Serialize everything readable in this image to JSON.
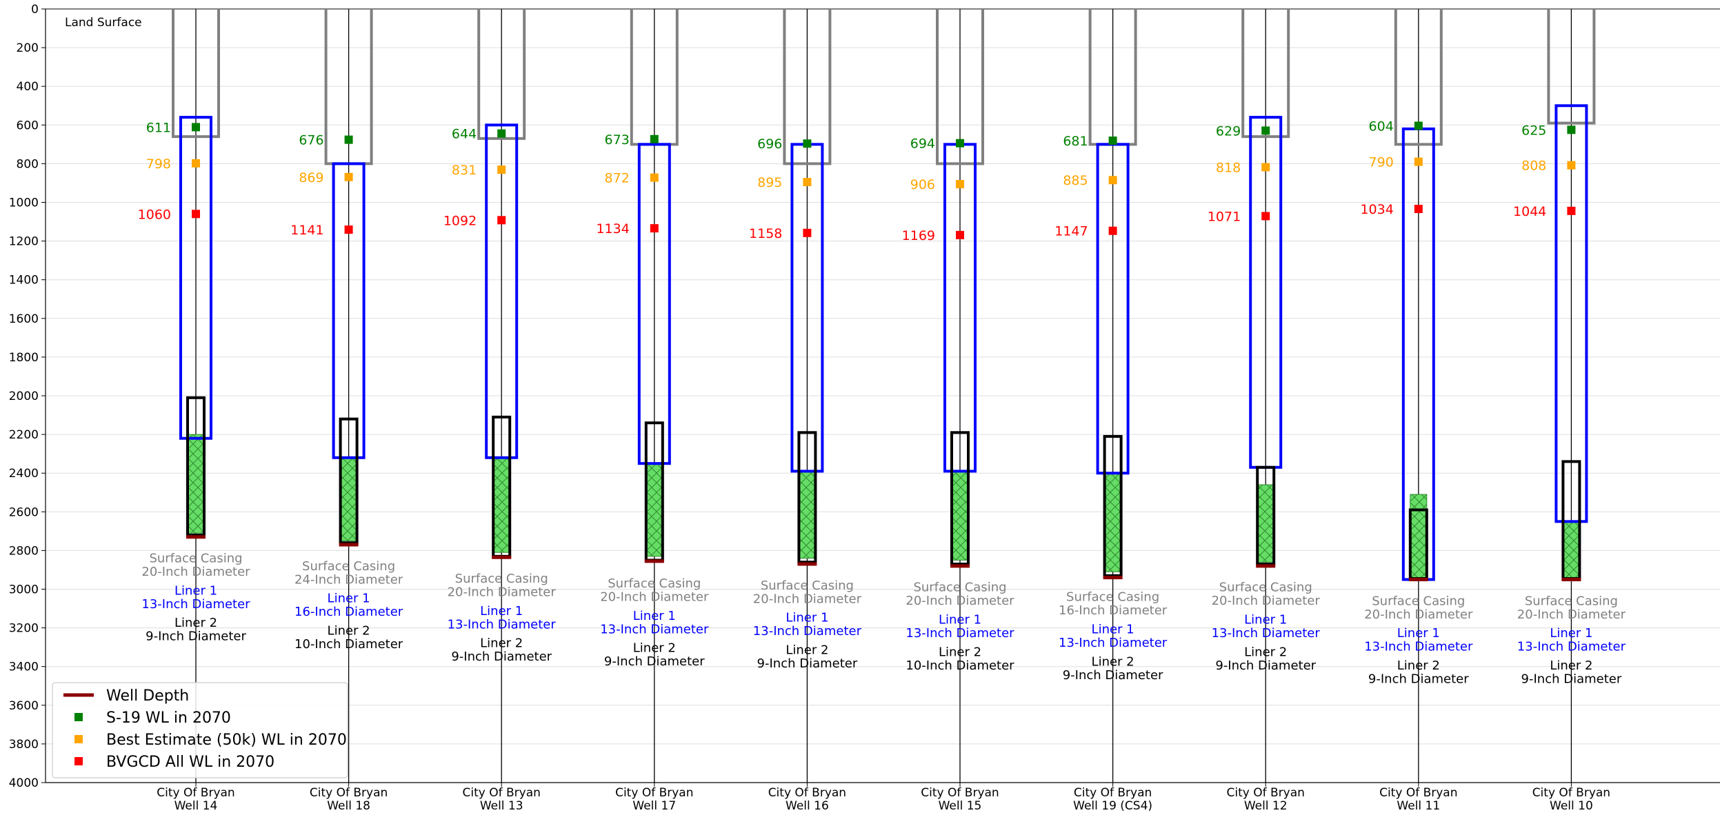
{
  "chart_data": {
    "type": "well_diagram",
    "corner_label": "Land Surface",
    "ylim": [
      4000,
      0
    ],
    "yticks": [
      0,
      200,
      400,
      600,
      800,
      1000,
      1200,
      1400,
      1600,
      1800,
      2000,
      2200,
      2400,
      2600,
      2800,
      3000,
      3200,
      3400,
      3600,
      3800,
      4000
    ],
    "grid": true,
    "legend_position": "lower-left",
    "legend": [
      {
        "key": "depth",
        "label": "Well Depth",
        "marker": "line"
      },
      {
        "key": "s19",
        "label": "S-19 WL in 2070",
        "marker": "square"
      },
      {
        "key": "best",
        "label": "Best Estimate (50k) WL in 2070",
        "marker": "square"
      },
      {
        "key": "bvgcd",
        "label": "BVGCD All WL in 2070",
        "marker": "square"
      }
    ],
    "colors": {
      "surface_casing": "#808080",
      "liner1": "#0000ff",
      "liner2": "#000000",
      "screen": "#66dd66",
      "depth": "#8b0000",
      "s19": "#008000",
      "best": "#ffa500",
      "bvgcd": "#ff0000",
      "grid": "#dddddd"
    },
    "wells": [
      {
        "name": [
          "City Of Bryan",
          "Well 14"
        ],
        "surface_bottom": 660,
        "liner1": [
          560,
          2220
        ],
        "liner2": [
          2010,
          2720
        ],
        "screen": [
          2200,
          2710
        ],
        "depth": 2730,
        "s19": 611,
        "best": 798,
        "bvgcd": 1060,
        "surface_text": [
          "Surface Casing",
          "20-Inch Diameter"
        ],
        "liner1_text": [
          "Liner 1",
          "13-Inch Diameter"
        ],
        "liner2_text": [
          "Liner 2",
          "9-Inch Diameter"
        ],
        "label_top": 2840
      },
      {
        "name": [
          "City Of Bryan",
          "Well 18"
        ],
        "surface_bottom": 800,
        "liner1": [
          800,
          2320
        ],
        "liner2": [
          2120,
          2760
        ],
        "screen": [
          2320,
          2750
        ],
        "depth": 2770,
        "s19": 676,
        "best": 869,
        "bvgcd": 1141,
        "surface_text": [
          "Surface Casing",
          "24-Inch Diameter"
        ],
        "liner1_text": [
          "Liner 1",
          "16-Inch Diameter"
        ],
        "liner2_text": [
          "Liner 2",
          "10-Inch Diameter"
        ],
        "label_top": 2880
      },
      {
        "name": [
          "City Of Bryan",
          "Well 13"
        ],
        "surface_bottom": 670,
        "liner1": [
          600,
          2320
        ],
        "liner2": [
          2110,
          2830
        ],
        "screen": [
          2320,
          2810
        ],
        "depth": 2835,
        "s19": 644,
        "best": 831,
        "bvgcd": 1092,
        "surface_text": [
          "Surface Casing",
          "20-Inch Diameter"
        ],
        "liner1_text": [
          "Liner 1",
          "13-Inch Diameter"
        ],
        "liner2_text": [
          "Liner 2",
          "9-Inch Diameter"
        ],
        "label_top": 2945
      },
      {
        "name": [
          "City Of Bryan",
          "Well 17"
        ],
        "surface_bottom": 700,
        "liner1": [
          700,
          2350
        ],
        "liner2": [
          2140,
          2850
        ],
        "screen": [
          2350,
          2830
        ],
        "depth": 2855,
        "s19": 673,
        "best": 872,
        "bvgcd": 1134,
        "surface_text": [
          "Surface Casing",
          "20-Inch Diameter"
        ],
        "liner1_text": [
          "Liner 1",
          "13-Inch Diameter"
        ],
        "liner2_text": [
          "Liner 2",
          "9-Inch Diameter"
        ],
        "label_top": 2970
      },
      {
        "name": [
          "City Of Bryan",
          "Well 16"
        ],
        "surface_bottom": 800,
        "liner1": [
          700,
          2390
        ],
        "liner2": [
          2190,
          2860
        ],
        "screen": [
          2390,
          2840
        ],
        "depth": 2870,
        "s19": 696,
        "best": 895,
        "bvgcd": 1158,
        "surface_text": [
          "Surface Casing",
          "20-Inch Diameter"
        ],
        "liner1_text": [
          "Liner 1",
          "13-Inch Diameter"
        ],
        "liner2_text": [
          "Liner 2",
          "9-Inch Diameter"
        ],
        "label_top": 2980
      },
      {
        "name": [
          "City Of Bryan",
          "Well 15"
        ],
        "surface_bottom": 800,
        "liner1": [
          700,
          2390
        ],
        "liner2": [
          2190,
          2870
        ],
        "screen": [
          2390,
          2850
        ],
        "depth": 2880,
        "s19": 694,
        "best": 906,
        "bvgcd": 1169,
        "surface_text": [
          "Surface Casing",
          "20-Inch Diameter"
        ],
        "liner1_text": [
          "Liner 1",
          "13-Inch Diameter"
        ],
        "liner2_text": [
          "Liner 2",
          "10-Inch Diameter"
        ],
        "label_top": 2990
      },
      {
        "name": [
          "City Of Bryan",
          "Well 19 (CS4)"
        ],
        "surface_bottom": 700,
        "liner1": [
          700,
          2400
        ],
        "liner2": [
          2210,
          2930
        ],
        "screen": [
          2400,
          2910
        ],
        "depth": 2940,
        "s19": 681,
        "best": 885,
        "bvgcd": 1147,
        "surface_text": [
          "Surface Casing",
          "16-Inch Diameter"
        ],
        "liner1_text": [
          "Liner 1",
          "13-Inch Diameter"
        ],
        "liner2_text": [
          "Liner 2",
          "9-Inch Diameter"
        ],
        "label_top": 3040
      },
      {
        "name": [
          "City Of Bryan",
          "Well 12"
        ],
        "surface_bottom": 660,
        "liner1": [
          560,
          2370
        ],
        "liner2": [
          2370,
          2870
        ],
        "screen": [
          2460,
          2860
        ],
        "depth": 2880,
        "s19": 629,
        "best": 818,
        "bvgcd": 1071,
        "surface_text": [
          "Surface Casing",
          "20-Inch Diameter"
        ],
        "liner1_text": [
          "Liner 1",
          "13-Inch Diameter"
        ],
        "liner2_text": [
          "Liner 2",
          "9-Inch Diameter"
        ],
        "label_top": 2990
      },
      {
        "name": [
          "City Of Bryan",
          "Well 11"
        ],
        "surface_bottom": 700,
        "liner1": [
          620,
          2950
        ],
        "liner2": [
          2590,
          2945
        ],
        "screen": [
          2510,
          2940
        ],
        "depth": 2950,
        "s19": 604,
        "best": 790,
        "bvgcd": 1034,
        "surface_text": [
          "Surface Casing",
          "20-Inch Diameter"
        ],
        "liner1_text": [
          "Liner 1",
          "13-Inch Diameter"
        ],
        "liner2_text": [
          "Liner 2",
          "9-Inch Diameter"
        ],
        "label_top": 3060
      },
      {
        "name": [
          "City Of Bryan",
          "Well 10"
        ],
        "surface_bottom": 590,
        "liner1": [
          500,
          2650
        ],
        "liner2": [
          2340,
          2945
        ],
        "screen": [
          2650,
          2940
        ],
        "depth": 2950,
        "s19": 625,
        "best": 808,
        "bvgcd": 1044,
        "surface_text": [
          "Surface Casing",
          "20-Inch Diameter"
        ],
        "liner1_text": [
          "Liner 1",
          "13-Inch Diameter"
        ],
        "liner2_text": [
          "Liner 2",
          "9-Inch Diameter"
        ],
        "label_top": 3060
      }
    ]
  }
}
